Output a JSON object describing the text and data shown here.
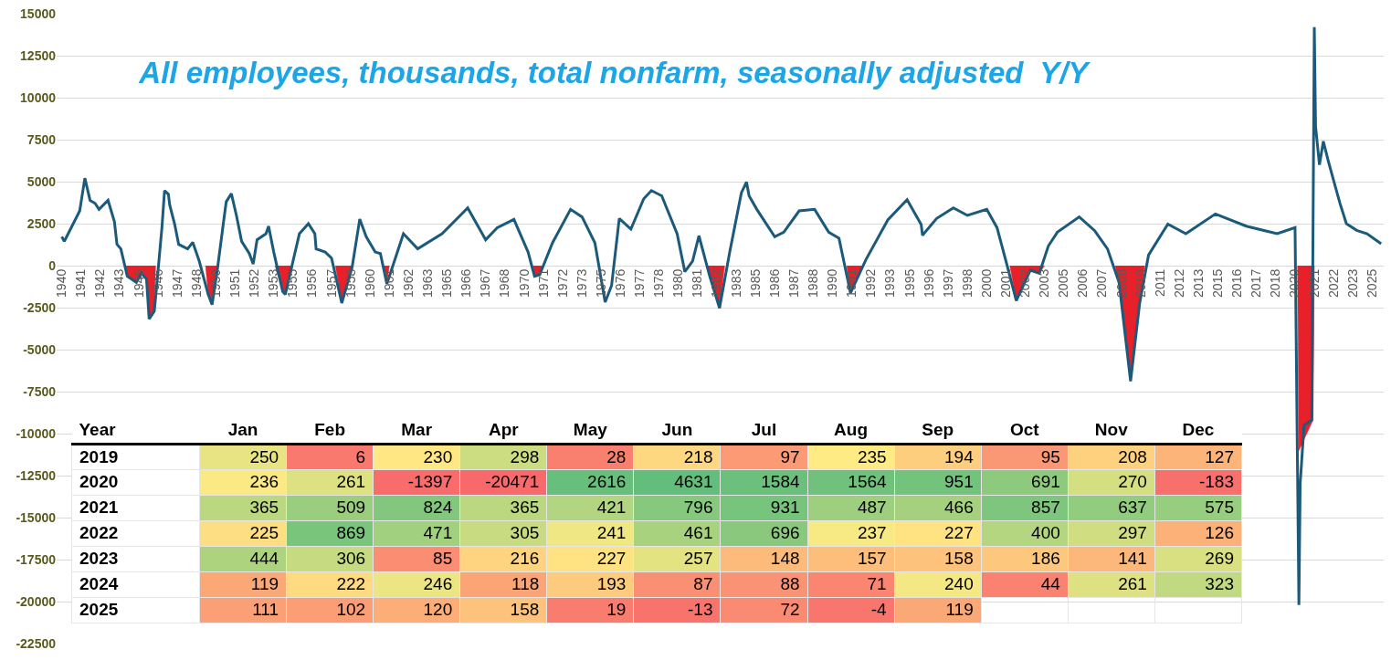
{
  "chart_data": [
    {
      "type": "line",
      "title": "All employees, thousands, total nonfarm, seasonally adjusted  Y/Y",
      "xlim": [
        "1939-09",
        "2025-10"
      ],
      "ylim": [
        -22500,
        15000
      ],
      "grid": "y",
      "yticks": [
        -22500,
        -20000,
        -17500,
        -15000,
        -12500,
        -10000,
        -7500,
        -5000,
        -2500,
        0,
        2500,
        5000,
        7500,
        10000,
        12500,
        15000
      ],
      "xticks": [
        {
          "value": "1940-01",
          "label": "1940"
        },
        {
          "value": "1941-04",
          "label": "1941"
        },
        {
          "value": "1942-07",
          "label": "1942"
        },
        {
          "value": "1943-10",
          "label": "1943"
        },
        {
          "value": "1945-01",
          "label": "1945"
        },
        {
          "value": "1946-04",
          "label": "1946"
        },
        {
          "value": "1947-07",
          "label": "1947"
        },
        {
          "value": "1948-10",
          "label": "1948"
        },
        {
          "value": "1950-01",
          "label": "1950"
        },
        {
          "value": "1951-04",
          "label": "1951"
        },
        {
          "value": "1952-07",
          "label": "1952"
        },
        {
          "value": "1953-10",
          "label": "1953"
        },
        {
          "value": "1955-01",
          "label": "1955"
        },
        {
          "value": "1956-04",
          "label": "1956"
        },
        {
          "value": "1957-07",
          "label": "1957"
        },
        {
          "value": "1958-10",
          "label": "1958"
        },
        {
          "value": "1960-01",
          "label": "1960"
        },
        {
          "value": "1961-04",
          "label": "1961"
        },
        {
          "value": "1962-07",
          "label": "1962"
        },
        {
          "value": "1963-10",
          "label": "1963"
        },
        {
          "value": "1965-01",
          "label": "1965"
        },
        {
          "value": "1966-04",
          "label": "1966"
        },
        {
          "value": "1967-07",
          "label": "1967"
        },
        {
          "value": "1968-10",
          "label": "1968"
        },
        {
          "value": "1970-01",
          "label": "1970"
        },
        {
          "value": "1971-04",
          "label": "1971"
        },
        {
          "value": "1972-07",
          "label": "1972"
        },
        {
          "value": "1973-10",
          "label": "1973"
        },
        {
          "value": "1975-01",
          "label": "1975"
        },
        {
          "value": "1976-04",
          "label": "1976"
        },
        {
          "value": "1977-07",
          "label": "1977"
        },
        {
          "value": "1978-10",
          "label": "1978"
        },
        {
          "value": "1980-01",
          "label": "1980"
        },
        {
          "value": "1981-04",
          "label": "1981"
        },
        {
          "value": "1982-07",
          "label": "1982"
        },
        {
          "value": "1983-10",
          "label": "1983"
        },
        {
          "value": "1985-01",
          "label": "1985"
        },
        {
          "value": "1986-04",
          "label": "1986"
        },
        {
          "value": "1987-07",
          "label": "1987"
        },
        {
          "value": "1988-10",
          "label": "1988"
        },
        {
          "value": "1990-01",
          "label": "1990"
        },
        {
          "value": "1991-04",
          "label": "1991"
        },
        {
          "value": "1992-07",
          "label": "1992"
        },
        {
          "value": "1993-10",
          "label": "1993"
        },
        {
          "value": "1995-01",
          "label": "1995"
        },
        {
          "value": "1996-04",
          "label": "1996"
        },
        {
          "value": "1997-07",
          "label": "1997"
        },
        {
          "value": "1998-10",
          "label": "1998"
        },
        {
          "value": "2000-01",
          "label": "2000"
        },
        {
          "value": "2001-04",
          "label": "2001"
        },
        {
          "value": "2002-07",
          "label": "2002"
        },
        {
          "value": "2003-10",
          "label": "2003"
        },
        {
          "value": "2005-01",
          "label": "2005"
        },
        {
          "value": "2006-04",
          "label": "2006"
        },
        {
          "value": "2007-07",
          "label": "2007"
        },
        {
          "value": "2008-10",
          "label": "2008"
        },
        {
          "value": "2010-01",
          "label": "2010"
        },
        {
          "value": "2011-04",
          "label": "2011"
        },
        {
          "value": "2012-07",
          "label": "2012"
        },
        {
          "value": "2013-10",
          "label": "2013"
        },
        {
          "value": "2015-01",
          "label": "2015"
        },
        {
          "value": "2016-04",
          "label": "2016"
        },
        {
          "value": "2017-07",
          "label": "2017"
        },
        {
          "value": "2018-10",
          "label": "2018"
        },
        {
          "value": "2020-01",
          "label": "2020"
        },
        {
          "value": "2021-04",
          "label": "2021"
        },
        {
          "value": "2022-07",
          "label": "2022"
        },
        {
          "value": "2023-10",
          "label": "2023"
        },
        {
          "value": "2025-01",
          "label": "2025"
        }
      ],
      "series": [
        {
          "type": "area",
          "color": "#e8202a",
          "x": [
            "1944-02",
            "1944-04",
            "1944-11",
            "1945-03",
            "1945-07",
            "1945-09",
            "1946-01",
            "1946-02"
          ],
          "values": [
            0,
            -630,
            -1000,
            -450,
            -810,
            -3170,
            -2720,
            0
          ]
        },
        {
          "type": "area",
          "color": "#e8202a",
          "x": [
            "1949-05",
            "1949-07",
            "1949-10",
            "1950-02"
          ],
          "values": [
            0,
            -1720,
            -2320,
            0
          ]
        },
        {
          "type": "area",
          "color": "#e8202a",
          "x": [
            "1953-11",
            "1954-05",
            "1954-07",
            "1955-01"
          ],
          "values": [
            0,
            -1540,
            -1720,
            0
          ]
        },
        {
          "type": "area",
          "color": "#e8202a",
          "x": [
            "1957-10",
            "1958-03",
            "1958-11"
          ],
          "values": [
            0,
            -2230,
            0
          ]
        },
        {
          "type": "area",
          "color": "#e8202a",
          "x": [
            "1960-12",
            "1961-02",
            "1961-04"
          ],
          "values": [
            0,
            -1090,
            0
          ]
        },
        {
          "type": "area",
          "color": "#e8202a",
          "x": [
            "1970-08",
            "1970-09",
            "1971-01",
            "1971-03"
          ],
          "values": [
            0,
            -630,
            -540,
            0
          ]
        },
        {
          "type": "area",
          "color": "#e8202a",
          "x": [
            "1981-11",
            "1982-01",
            "1982-09",
            "1983-01"
          ],
          "values": [
            0,
            -540,
            -2530,
            0
          ]
        },
        {
          "type": "area",
          "color": "#e8202a",
          "x": [
            "1990-12",
            "1991-03",
            "1991-12"
          ],
          "values": [
            0,
            -1630,
            0
          ]
        },
        {
          "type": "area",
          "color": "#e8202a",
          "x": [
            "2001-07",
            "2001-12",
            "2002-11",
            "2003-06",
            "2003-10"
          ],
          "values": [
            0,
            -2080,
            -270,
            -450,
            0
          ]
        },
        {
          "type": "area",
          "color": "#e8202a",
          "x": [
            "2008-05",
            "2008-08",
            "2009-05",
            "2009-12",
            "2010-04"
          ],
          "values": [
            0,
            -1000,
            -6880,
            -2260,
            0
          ]
        },
        {
          "type": "area",
          "color": "#e8202a",
          "x": [
            "2020-03",
            "2020-04",
            "2021-03",
            "2021-04"
          ],
          "values": [
            0,
            -11000,
            -9200,
            0
          ]
        },
        {
          "color": "#1b5a7a",
          "x": [
            "1940-01",
            "1940-03",
            "1940-06",
            "1941-03",
            "1941-07",
            "1941-11",
            "1942-03",
            "1942-06",
            "1943-01",
            "1943-06",
            "1943-08",
            "1943-11",
            "1944-04",
            "1944-11",
            "1945-03",
            "1945-07",
            "1945-09",
            "1946-01",
            "1946-02",
            "1946-07",
            "1946-09",
            "1946-12",
            "1947-01",
            "1947-05",
            "1947-08",
            "1948-03",
            "1948-07",
            "1948-12",
            "1949-07",
            "1949-10",
            "1950-02",
            "1950-07",
            "1950-09",
            "1951-01",
            "1951-05",
            "1951-09",
            "1952-03",
            "1952-06",
            "1952-09",
            "1953-04",
            "1953-06",
            "1953-10",
            "1954-05",
            "1954-07",
            "1955-01",
            "1955-06",
            "1956-01",
            "1956-06",
            "1956-07",
            "1957-02",
            "1957-07",
            "1958-03",
            "1958-11",
            "1959-05",
            "1959-10",
            "1960-05",
            "1960-09",
            "1961-02",
            "1962-03",
            "1963-02",
            "1964-09",
            "1966-05",
            "1967-07",
            "1968-04",
            "1969-05",
            "1970-04",
            "1970-09",
            "1971-01",
            "1971-11",
            "1973-01",
            "1973-10",
            "1974-08",
            "1975-04",
            "1975-09",
            "1976-03",
            "1976-12",
            "1977-10",
            "1978-04",
            "1978-12",
            "1979-12",
            "1980-06",
            "1980-12",
            "1981-05",
            "1982-01",
            "1982-09",
            "1983-05",
            "1984-02",
            "1984-06",
            "1984-08",
            "1985-02",
            "1986-04",
            "1986-11",
            "1987-11",
            "1988-11",
            "1989-10",
            "1990-06",
            "1991-03",
            "1992-03",
            "1993-08",
            "1994-11",
            "1995-10",
            "1995-11",
            "1996-10",
            "1997-11",
            "1998-10",
            "2000-01",
            "2000-09",
            "2001-04",
            "2001-12",
            "2002-11",
            "2003-06",
            "2004-01",
            "2004-08",
            "2006-01",
            "2007-01",
            "2007-11",
            "2008-08",
            "2009-05",
            "2009-12",
            "2010-07",
            "2011-10",
            "2012-12",
            "2014-11",
            "2016-11",
            "2018-11",
            "2020-01",
            "2020-04",
            "2020-05",
            "2020-08",
            "2021-02",
            "2021-04",
            "2021-05",
            "2021-08",
            "2021-11",
            "2022-03",
            "2022-08",
            "2022-12",
            "2023-05",
            "2024-01",
            "2024-09",
            "2025-08"
          ],
          "values": [
            1720,
            1450,
            1900,
            3260,
            5210,
            3890,
            3710,
            3350,
            3890,
            2620,
            1270,
            1000,
            -630,
            -1000,
            -450,
            -810,
            -3170,
            -2720,
            -1900,
            2260,
            4470,
            4250,
            3620,
            2440,
            1270,
            1000,
            1390,
            270,
            -1720,
            -2320,
            -270,
            2620,
            3800,
            4290,
            2990,
            1450,
            720,
            90,
            1540,
            1900,
            2350,
            810,
            -1540,
            -1720,
            270,
            1900,
            2500,
            1900,
            1000,
            810,
            450,
            -2230,
            -90,
            2770,
            1720,
            810,
            720,
            -1090,
            1900,
            1000,
            1900,
            3440,
            1540,
            2260,
            2750,
            810,
            -630,
            -540,
            1360,
            3350,
            2900,
            1360,
            -2170,
            -1180,
            2810,
            2170,
            3980,
            4470,
            4160,
            1900,
            -360,
            270,
            1780,
            -540,
            -2530,
            810,
            4340,
            4980,
            4160,
            3350,
            1720,
            1990,
            3260,
            3350,
            1990,
            1630,
            -1630,
            360,
            2720,
            3930,
            2440,
            1810,
            2810,
            3440,
            2990,
            3350,
            2260,
            270,
            -2080,
            -270,
            -450,
            1180,
            1990,
            2900,
            2080,
            1000,
            -1000,
            -6880,
            -2260,
            630,
            2480,
            1900,
            3080,
            2350,
            1900,
            2260,
            -20200,
            -13000,
            -9500,
            -9200,
            14200,
            8300,
            6000,
            7400,
            6200,
            4800,
            3700,
            2500,
            2100,
            1900,
            1300
          ]
        }
      ]
    },
    {
      "type": "heatmap",
      "ylabel": "Year",
      "data_labels": true,
      "categories": [
        "Jan",
        "Feb",
        "Mar",
        "Apr",
        "May",
        "Jun",
        "Jul",
        "Aug",
        "Sep",
        "Oct",
        "Nov",
        "Dec"
      ],
      "y_categories": [
        "2019",
        "2020",
        "2021",
        "2022",
        "2023",
        "2024",
        "2025"
      ],
      "cells": [
        [
          250,
          6,
          230,
          298,
          28,
          218,
          97,
          235,
          194,
          95,
          208,
          127
        ],
        [
          236,
          261,
          -1397,
          -20471,
          2616,
          4631,
          1584,
          1564,
          951,
          691,
          270,
          -183
        ],
        [
          365,
          509,
          824,
          365,
          421,
          796,
          931,
          487,
          466,
          857,
          637,
          575
        ],
        [
          225,
          869,
          471,
          305,
          241,
          461,
          696,
          237,
          227,
          400,
          297,
          126
        ],
        [
          444,
          306,
          85,
          216,
          227,
          257,
          148,
          157,
          158,
          186,
          141,
          269
        ],
        [
          119,
          222,
          246,
          118,
          193,
          87,
          88,
          71,
          240,
          44,
          261,
          323
        ],
        [
          111,
          102,
          120,
          158,
          19,
          -13,
          72,
          -4,
          119,
          null,
          null,
          null
        ]
      ]
    }
  ]
}
